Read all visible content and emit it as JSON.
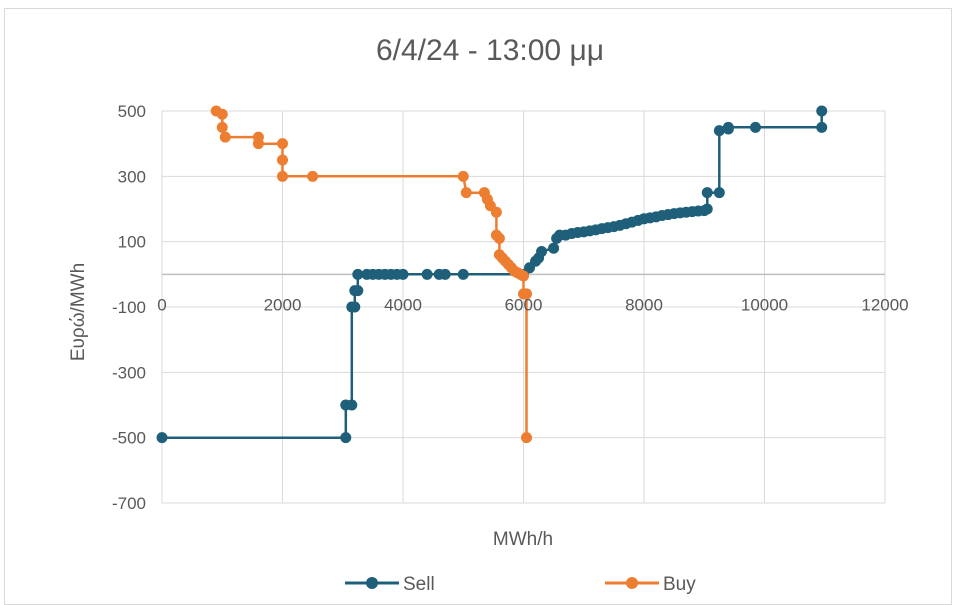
{
  "chart_data": {
    "type": "scatter",
    "title": "6/4/24 - 13:00 μμ",
    "xlabel": "MWh/h",
    "ylabel": "Ευρώ/MWh",
    "xlim": [
      0,
      12000
    ],
    "ylim": [
      -700,
      500
    ],
    "xticks": [
      0,
      2000,
      4000,
      6000,
      8000,
      10000,
      12000
    ],
    "yticks": [
      -700,
      -500,
      -300,
      -100,
      100,
      300,
      500
    ],
    "grid": true,
    "legend_position": "bottom",
    "series": [
      {
        "name": "Sell",
        "color": "#1f5f7a",
        "points": [
          [
            0,
            -500
          ],
          [
            3050,
            -500
          ],
          [
            3050,
            -400
          ],
          [
            3150,
            -400
          ],
          [
            3150,
            -100
          ],
          [
            3200,
            -100
          ],
          [
            3200,
            -50
          ],
          [
            3250,
            -50
          ],
          [
            3250,
            0
          ],
          [
            3400,
            0
          ],
          [
            3500,
            0
          ],
          [
            3600,
            0
          ],
          [
            3700,
            0
          ],
          [
            3800,
            0
          ],
          [
            3900,
            0
          ],
          [
            4000,
            0
          ],
          [
            4400,
            0
          ],
          [
            4600,
            0
          ],
          [
            4700,
            0
          ],
          [
            5000,
            0
          ],
          [
            6000,
            0
          ],
          [
            6100,
            20
          ],
          [
            6200,
            40
          ],
          [
            6250,
            50
          ],
          [
            6300,
            70
          ],
          [
            6500,
            80
          ],
          [
            6550,
            110
          ],
          [
            6600,
            120
          ],
          [
            6700,
            120
          ],
          [
            6800,
            125
          ],
          [
            6900,
            128
          ],
          [
            7000,
            130
          ],
          [
            7100,
            133
          ],
          [
            7200,
            136
          ],
          [
            7300,
            140
          ],
          [
            7400,
            143
          ],
          [
            7500,
            146
          ],
          [
            7600,
            150
          ],
          [
            7700,
            155
          ],
          [
            7800,
            160
          ],
          [
            7900,
            165
          ],
          [
            8000,
            170
          ],
          [
            8100,
            173
          ],
          [
            8200,
            176
          ],
          [
            8300,
            180
          ],
          [
            8400,
            183
          ],
          [
            8500,
            186
          ],
          [
            8600,
            188
          ],
          [
            8700,
            190
          ],
          [
            8800,
            192
          ],
          [
            8900,
            194
          ],
          [
            9000,
            195
          ],
          [
            9050,
            200
          ],
          [
            9050,
            250
          ],
          [
            9250,
            250
          ],
          [
            9250,
            440
          ],
          [
            9400,
            445
          ],
          [
            9400,
            450
          ],
          [
            9850,
            450
          ],
          [
            10950,
            450
          ],
          [
            10950,
            500
          ]
        ]
      },
      {
        "name": "Buy",
        "color": "#ed7d31",
        "points": [
          [
            900,
            500
          ],
          [
            1000,
            490
          ],
          [
            1000,
            450
          ],
          [
            1050,
            420
          ],
          [
            1600,
            420
          ],
          [
            1600,
            400
          ],
          [
            2000,
            400
          ],
          [
            2000,
            350
          ],
          [
            2000,
            300
          ],
          [
            2500,
            300
          ],
          [
            5000,
            300
          ],
          [
            5050,
            250
          ],
          [
            5350,
            250
          ],
          [
            5400,
            230
          ],
          [
            5450,
            210
          ],
          [
            5550,
            190
          ],
          [
            5550,
            120
          ],
          [
            5600,
            110
          ],
          [
            5600,
            60
          ],
          [
            5650,
            50
          ],
          [
            5700,
            40
          ],
          [
            5750,
            30
          ],
          [
            5800,
            20
          ],
          [
            5850,
            10
          ],
          [
            5900,
            5
          ],
          [
            5950,
            0
          ],
          [
            6000,
            -5
          ],
          [
            6000,
            -60
          ],
          [
            6050,
            -60
          ],
          [
            6050,
            -500
          ]
        ]
      }
    ]
  }
}
